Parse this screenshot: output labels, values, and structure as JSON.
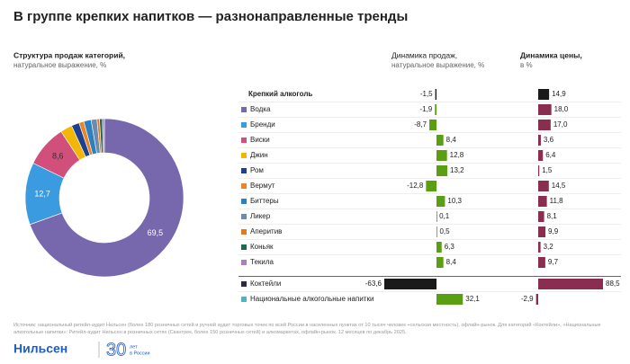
{
  "title": "В группе крепких напитков — разнонаправленные тренды",
  "chart_data": [
    {
      "type": "pie",
      "donut": true,
      "title": "Структура продаж категорий,",
      "subtitle": "натуральное выражение, %",
      "values": [
        69.5,
        12.7,
        8.6,
        2.4,
        1.6,
        1.0,
        1.5,
        1.2,
        0.5,
        0.6,
        0.4
      ],
      "value_labels": [
        "69,5",
        "12,7",
        "8,6",
        null,
        null,
        null,
        null,
        null,
        null,
        null,
        null
      ],
      "colors": [
        "#7767ad",
        "#3a9be0",
        "#d04f7b",
        "#f2b705",
        "#1f3f8f",
        "#e8862a",
        "#2e7fc0",
        "#6a8caf",
        "#e07b20",
        "#1d6b4f",
        "#a77fc2"
      ],
      "label_colors": [
        "#ffffff",
        "#ffffff",
        "#333333",
        null,
        null,
        null,
        null,
        null,
        null,
        null,
        null
      ]
    },
    {
      "type": "bar",
      "orientation": "horizontal",
      "title": "Динамика продаж,",
      "subtitle": "натуральное выражение, %",
      "categories": [
        "Крепкий алкоголь",
        "Водка",
        "Бренди",
        "Виски",
        "Джин",
        "Ром",
        "Вермут",
        "Биттеры",
        "Ликер",
        "Аперитив",
        "Коньяк",
        "Текила",
        "Коктейли",
        "Национальные алкогольные напитки"
      ],
      "marker_colors": [
        null,
        "#7767ad",
        "#3a9be0",
        "#d04f7b",
        "#f2b705",
        "#1f3f8f",
        "#e8862a",
        "#2e7fc0",
        "#6a8caf",
        "#e07b20",
        "#1d6b4f",
        "#a77fc2",
        "#2b2b3b",
        "#4fb3c0"
      ],
      "values": [
        -1.5,
        -1.9,
        -8.7,
        8.4,
        12.8,
        13.2,
        -12.8,
        10.3,
        0.1,
        0.5,
        6.3,
        8.4,
        -63.6,
        32.1
      ],
      "value_labels": [
        "-1,5",
        "-1,9",
        "-8,7",
        "8,4",
        "12,8",
        "13,2",
        "-12,8",
        "10,3",
        "0,1",
        "0,5",
        "6,3",
        "8,4",
        "-63,6",
        "32,1"
      ],
      "colors": [
        "#1a1a1a",
        "#5a9e12",
        "#5a9e12",
        "#5a9e12",
        "#5a9e12",
        "#5a9e12",
        "#5a9e12",
        "#5a9e12",
        "#5a9e12",
        "#5a9e12",
        "#5a9e12",
        "#5a9e12",
        "#1a1a1a",
        "#5a9e12"
      ]
    },
    {
      "type": "bar",
      "orientation": "horizontal",
      "title": "Динамика цены,",
      "subtitle": "в %",
      "values": [
        14.9,
        18.0,
        17.0,
        3.6,
        6.4,
        1.5,
        14.5,
        11.8,
        8.1,
        9.9,
        3.2,
        9.7,
        88.5,
        -2.9
      ],
      "value_labels": [
        "14,9",
        "18,0",
        "17,0",
        "3,6",
        "6,4",
        "1,5",
        "14,5",
        "11,8",
        "8,1",
        "9,9",
        "3,2",
        "9,7",
        "88,5",
        "-2,9"
      ],
      "colors": [
        "#1a1a1a",
        "#8b2d4f",
        "#8b2d4f",
        "#8b2d4f",
        "#8b2d4f",
        "#8b2d4f",
        "#8b2d4f",
        "#8b2d4f",
        "#8b2d4f",
        "#8b2d4f",
        "#8b2d4f",
        "#8b2d4f",
        "#8b2d4f",
        "#8b2d4f"
      ]
    }
  ],
  "source": "Источник: национальный ритейл-аудит Нильсен (более 180 розничных сетей и ручной аудит торговых точек по всей России в населенных пунктах от 10 тысяч человек +сельская местность), офлайн-рынок. Для категорий «Коктейли», «Национальные алкогольные напитки»: Ритейл-аудит Нильсен в розничных сетях (Скантрек, более 150 розничных сетей) и алкомаркетах, офлайн-рынок. 12 месяцев по декабрь 2025.",
  "logo": "Нильсен",
  "anniversary_number": "30",
  "anniversary_line1": "лет",
  "anniversary_line2": "в России"
}
